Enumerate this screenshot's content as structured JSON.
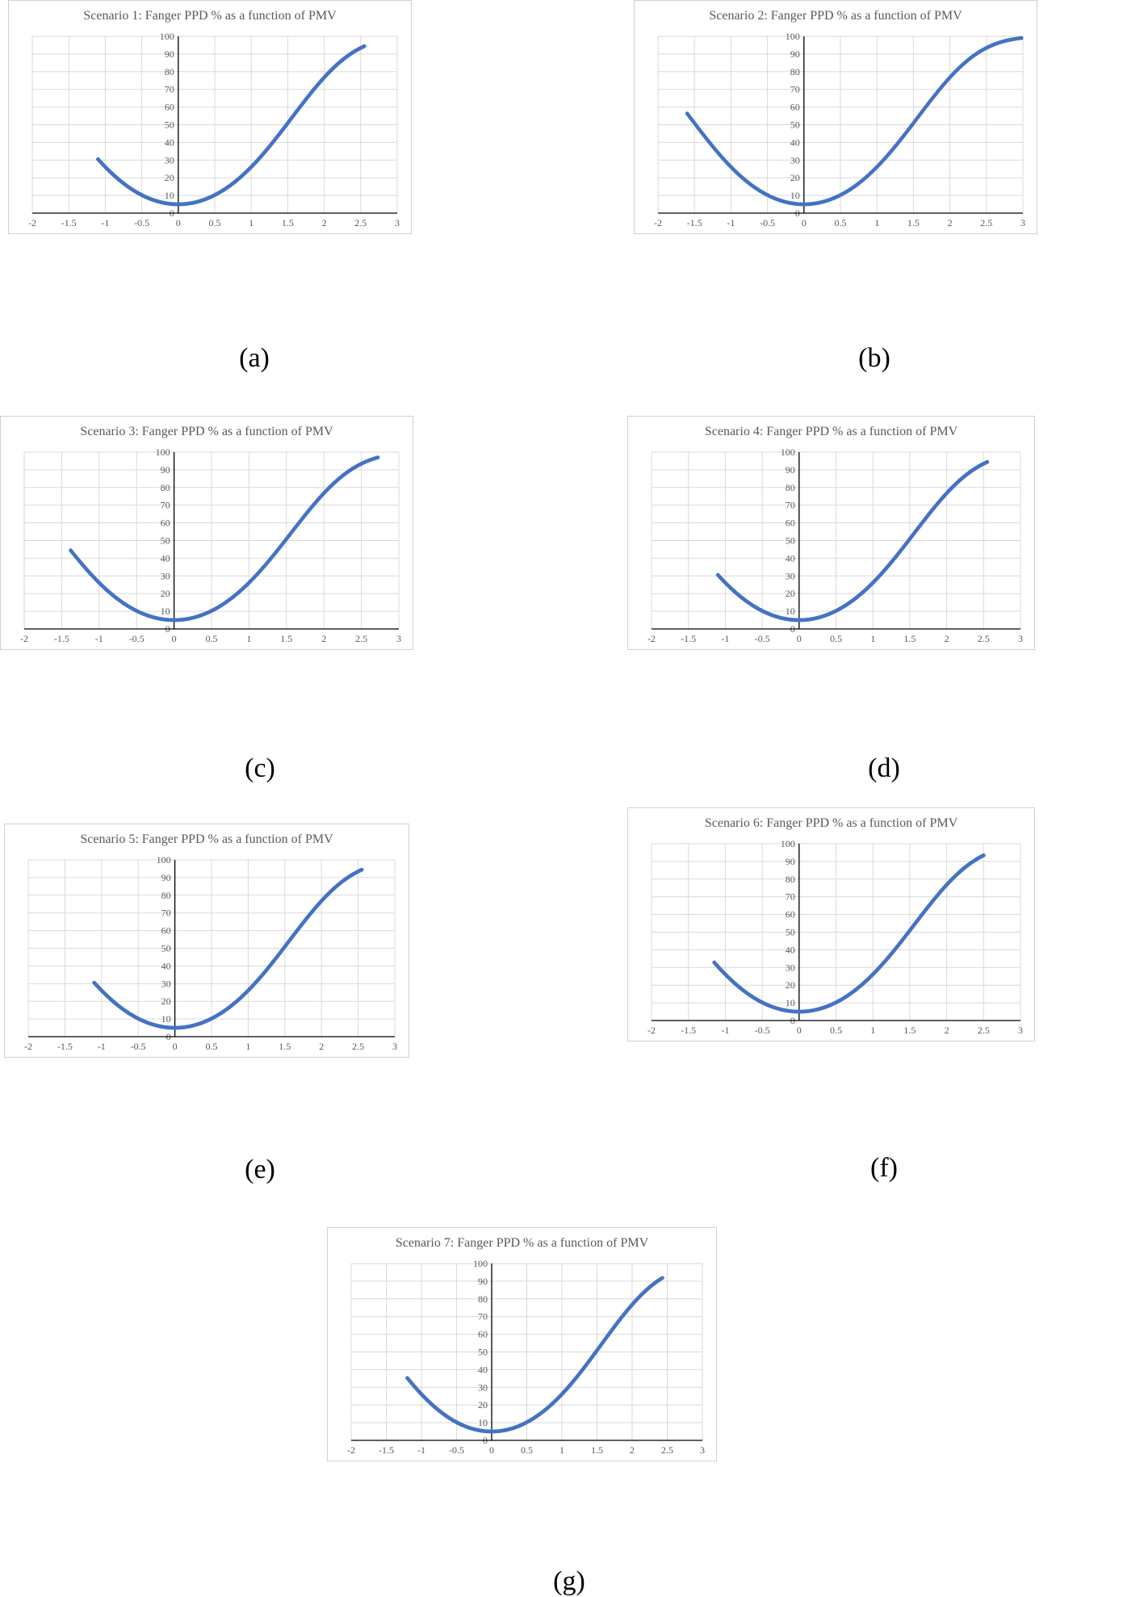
{
  "chart_data": [
    {
      "id": "a",
      "panel_label": "(a)",
      "type": "scatter",
      "title": "Scenario 1: Fanger PPD % as a function of PMV",
      "xlim": [
        -2,
        3
      ],
      "ylim": [
        0,
        100
      ],
      "x_ticks": [
        "-2",
        "-1.5",
        "-1",
        "-0.5",
        "0",
        "0.5",
        "1",
        "1.5",
        "2",
        "2.5",
        "3"
      ],
      "y_ticks": [
        "0",
        "10",
        "20",
        "30",
        "40",
        "50",
        "60",
        "70",
        "80",
        "90",
        "100"
      ],
      "x_range": [
        -1.1,
        2.55
      ]
    },
    {
      "id": "b",
      "panel_label": "(b)",
      "type": "scatter",
      "title": "Scenario 2: Fanger PPD % as a function of PMV",
      "xlim": [
        -2,
        3
      ],
      "ylim": [
        0,
        100
      ],
      "x_ticks": [
        "-2",
        "-1.5",
        "-1",
        "-0.5",
        "0",
        "0.5",
        "1",
        "1.5",
        "2",
        "2.5",
        "3"
      ],
      "y_ticks": [
        "0",
        "10",
        "20",
        "30",
        "40",
        "50",
        "60",
        "70",
        "80",
        "90",
        "100"
      ],
      "x_range": [
        -1.6,
        2.98
      ]
    },
    {
      "id": "c",
      "panel_label": "(c)",
      "type": "scatter",
      "title": "Scenario 3: Fanger PPD % as a function of PMV",
      "xlim": [
        -2,
        3
      ],
      "ylim": [
        0,
        100
      ],
      "x_ticks": [
        "-2",
        "-1.5",
        "-1",
        "-0.5",
        "0",
        "0.5",
        "1",
        "1.5",
        "2",
        "2.5",
        "3"
      ],
      "y_ticks": [
        "0",
        "10",
        "20",
        "30",
        "40",
        "50",
        "60",
        "70",
        "80",
        "90",
        "100"
      ],
      "x_range": [
        -1.38,
        2.72
      ]
    },
    {
      "id": "d",
      "panel_label": "(d)",
      "type": "scatter",
      "title": "Scenario 4: Fanger PPD % as a function of PMV",
      "xlim": [
        -2,
        3
      ],
      "ylim": [
        0,
        100
      ],
      "x_ticks": [
        "-2",
        "-1.5",
        "-1",
        "-0.5",
        "0",
        "0.5",
        "1",
        "1.5",
        "2",
        "2.5",
        "3"
      ],
      "y_ticks": [
        "0",
        "10",
        "20",
        "30",
        "40",
        "50",
        "60",
        "70",
        "80",
        "90",
        "100"
      ],
      "x_range": [
        -1.1,
        2.55
      ]
    },
    {
      "id": "e",
      "panel_label": "(e)",
      "type": "scatter",
      "title": "Scenario 5: Fanger PPD % as a function of PMV",
      "xlim": [
        -2,
        3
      ],
      "ylim": [
        0,
        100
      ],
      "x_ticks": [
        "-2",
        "-1.5",
        "-1",
        "-0.5",
        "0",
        "0.5",
        "1",
        "1.5",
        "2",
        "2.5",
        "3"
      ],
      "y_ticks": [
        "0",
        "10",
        "20",
        "30",
        "40",
        "50",
        "60",
        "70",
        "80",
        "90",
        "100"
      ],
      "x_range": [
        -1.1,
        2.55
      ]
    },
    {
      "id": "f",
      "panel_label": "(f)",
      "type": "scatter",
      "title": "Scenario 6: Fanger PPD % as a function of PMV",
      "xlim": [
        -2,
        3
      ],
      "ylim": [
        0,
        100
      ],
      "x_ticks": [
        "-2",
        "-1.5",
        "-1",
        "-0.5",
        "0",
        "0.5",
        "1",
        "1.5",
        "2",
        "2.5",
        "3"
      ],
      "y_ticks": [
        "0",
        "10",
        "20",
        "30",
        "40",
        "50",
        "60",
        "70",
        "80",
        "90",
        "100"
      ],
      "x_range": [
        -1.15,
        2.5
      ]
    },
    {
      "id": "g",
      "panel_label": "(g)",
      "type": "scatter",
      "title": "Scenario 7: Fanger PPD % as a function of PMV",
      "xlim": [
        -2,
        3
      ],
      "ylim": [
        0,
        100
      ],
      "x_ticks": [
        "-2",
        "-1.5",
        "-1",
        "-0.5",
        "0",
        "0.5",
        "1",
        "1.5",
        "2",
        "2.5",
        "3"
      ],
      "y_ticks": [
        "0",
        "10",
        "20",
        "30",
        "40",
        "50",
        "60",
        "70",
        "80",
        "90",
        "100"
      ],
      "x_range": [
        -1.2,
        2.43
      ]
    }
  ],
  "marker_color": "#4472c4",
  "grid": true
}
